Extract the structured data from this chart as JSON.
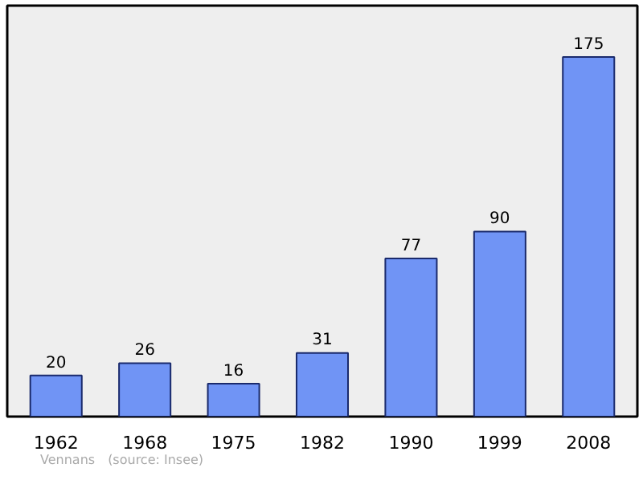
{
  "chart_data": {
    "type": "bar",
    "categories": [
      "1962",
      "1968",
      "1975",
      "1982",
      "1990",
      "1999",
      "2008"
    ],
    "values": [
      20,
      26,
      16,
      31,
      77,
      90,
      175
    ],
    "color": "#7094f5",
    "ylim": [
      0,
      200
    ],
    "data_labels": true,
    "grid": false,
    "annotations": [
      "Vennans",
      "(source: Insee)"
    ]
  }
}
